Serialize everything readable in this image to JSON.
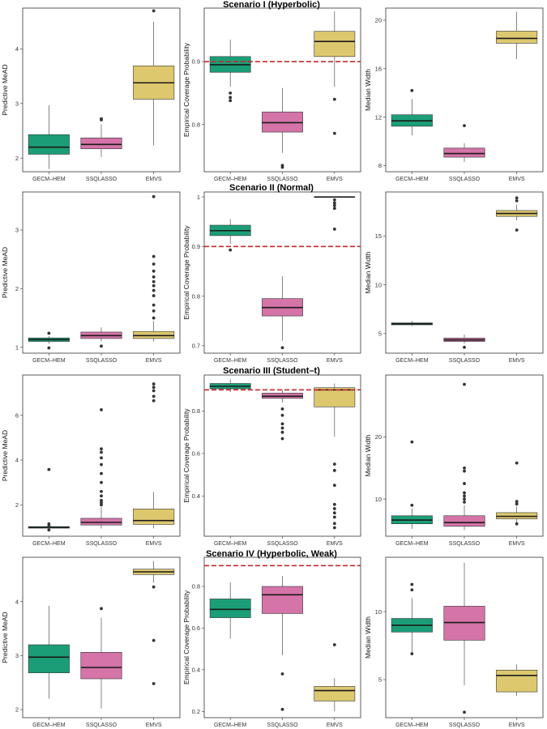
{
  "colors": {
    "GECM-HEM": "#1b9e77",
    "SSQLASSO": "#d474a8",
    "EMVS": "#ddc86e",
    "reference": "#c8282d"
  },
  "chart_data": [
    {
      "type": "box",
      "scenario": "Scenario I (Hyperbolic)",
      "ylabel": "Predictive MeAD",
      "ylim": [
        1.75,
        4.75
      ],
      "yticks": [
        2,
        3,
        4
      ],
      "categories": [
        "GECM–HEM",
        "SSQLASSO",
        "EMVS"
      ],
      "boxes": [
        {
          "whislo": 1.8,
          "q1": 2.07,
          "med": 2.2,
          "q3": 2.43,
          "whishi": 2.97,
          "outliers": []
        },
        {
          "whislo": 2.02,
          "q1": 2.17,
          "med": 2.25,
          "q3": 2.37,
          "whishi": 2.62,
          "outliers": [
            2.7,
            2.72
          ]
        },
        {
          "whislo": 2.23,
          "q1": 3.08,
          "med": 3.38,
          "q3": 3.69,
          "whishi": 4.5,
          "outliers": [
            4.7
          ]
        }
      ]
    },
    {
      "type": "box",
      "scenario": "Scenario I (Hyperbolic)",
      "ylabel": "Empirical Coverage Probability",
      "ylim": [
        0.725,
        0.985
      ],
      "yticks": [
        0.8,
        0.9
      ],
      "refline": 0.9,
      "categories": [
        "GECM–HEM",
        "SSQLASSO",
        "EMVS"
      ],
      "boxes": [
        {
          "whislo": 0.86,
          "q1": 0.883,
          "med": 0.895,
          "q3": 0.908,
          "whishi": 0.935,
          "outliers": [
            0.85,
            0.843,
            0.838
          ]
        },
        {
          "whislo": 0.755,
          "q1": 0.788,
          "med": 0.803,
          "q3": 0.82,
          "whishi": 0.858,
          "outliers": [
            0.735,
            0.732
          ]
        },
        {
          "whislo": 0.86,
          "q1": 0.908,
          "med": 0.932,
          "q3": 0.948,
          "whishi": 0.98,
          "outliers": [
            0.84,
            0.786
          ]
        }
      ]
    },
    {
      "type": "box",
      "scenario": "Scenario I (Hyperbolic)",
      "ylabel": "Median Width",
      "ylim": [
        7.5,
        21
      ],
      "yticks": [
        8,
        12,
        16,
        20
      ],
      "categories": [
        "GECM–HEM",
        "SSQLASSO",
        "EMVS"
      ],
      "boxes": [
        {
          "whislo": 10.5,
          "q1": 11.25,
          "med": 11.7,
          "q3": 12.2,
          "whishi": 13.5,
          "outliers": [
            14.2
          ]
        },
        {
          "whislo": 8.3,
          "q1": 8.7,
          "med": 9.0,
          "q3": 9.45,
          "whishi": 9.85,
          "outliers": [
            11.3
          ]
        },
        {
          "whislo": 16.8,
          "q1": 18.1,
          "med": 18.5,
          "q3": 19.1,
          "whishi": 20.7,
          "outliers": []
        }
      ]
    },
    {
      "type": "box",
      "scenario": "Scenario II (Normal)",
      "ylabel": "Predictive MeAD",
      "ylim": [
        0.9,
        3.65
      ],
      "yticks": [
        1,
        2,
        3
      ],
      "categories": [
        "GECM–HEM",
        "SSQLASSO",
        "EMVS"
      ],
      "boxes": [
        {
          "whislo": 1.06,
          "q1": 1.1,
          "med": 1.13,
          "q3": 1.16,
          "whishi": 1.19,
          "outliers": [
            1.24,
            0.99
          ]
        },
        {
          "whislo": 1.1,
          "q1": 1.15,
          "med": 1.2,
          "q3": 1.26,
          "whishi": 1.34,
          "outliers": [
            1.02
          ]
        },
        {
          "whislo": 1.1,
          "q1": 1.15,
          "med": 1.2,
          "q3": 1.27,
          "whishi": 1.45,
          "outliers": [
            1.5,
            1.62,
            1.72,
            1.88,
            1.97,
            2.05,
            2.12,
            2.2,
            2.3,
            2.42,
            2.55,
            3.57
          ]
        }
      ]
    },
    {
      "type": "box",
      "scenario": "Scenario II (Normal)",
      "ylabel": "Empirical Coverage Probability",
      "ylim": [
        0.685,
        1.01
      ],
      "yticks": [
        0.7,
        0.8,
        0.9,
        1.0
      ],
      "refline": 0.9,
      "categories": [
        "GECM–HEM",
        "SSQLASSO",
        "EMVS"
      ],
      "boxes": [
        {
          "whislo": 0.905,
          "q1": 0.922,
          "med": 0.932,
          "q3": 0.943,
          "whishi": 0.955,
          "outliers": [
            0.893
          ]
        },
        {
          "whislo": 0.71,
          "q1": 0.76,
          "med": 0.777,
          "q3": 0.795,
          "whishi": 0.84,
          "outliers": [
            0.696
          ]
        },
        {
          "whislo": 1.0,
          "q1": 1.0,
          "med": 1.0,
          "q3": 1.0,
          "whishi": 1.0,
          "outliers": [
            0.994,
            0.988,
            0.983,
            0.977,
            0.935
          ]
        }
      ]
    },
    {
      "type": "box",
      "scenario": "Scenario II (Normal)",
      "ylabel": "Median Width",
      "ylim": [
        3,
        19.5
      ],
      "yticks": [
        5,
        10,
        15
      ],
      "categories": [
        "GECM–HEM",
        "SSQLASSO",
        "EMVS"
      ],
      "boxes": [
        {
          "whislo": 5.8,
          "q1": 5.9,
          "med": 6.0,
          "q3": 6.1,
          "whishi": 6.3,
          "outliers": []
        },
        {
          "whislo": 4.0,
          "q1": 4.2,
          "med": 4.35,
          "q3": 4.55,
          "whishi": 4.9,
          "outliers": [
            3.6
          ]
        },
        {
          "whislo": 16.6,
          "q1": 17.0,
          "med": 17.3,
          "q3": 17.6,
          "whishi": 18.2,
          "outliers": [
            18.6,
            18.9,
            15.6
          ]
        }
      ]
    },
    {
      "type": "box",
      "scenario": "Scenario III (Student–t)",
      "ylabel": "Predictive MeAD",
      "ylim": [
        0.6,
        7.8
      ],
      "yticks": [
        2,
        4,
        6
      ],
      "categories": [
        "GECM–HEM",
        "SSQLASSO",
        "EMVS"
      ],
      "boxes": [
        {
          "whislo": 0.9,
          "q1": 0.96,
          "med": 1.0,
          "q3": 1.03,
          "whishi": 1.07,
          "outliers": [
            1.15,
            1.05,
            0.88,
            3.58
          ]
        },
        {
          "whislo": 0.95,
          "q1": 1.1,
          "med": 1.22,
          "q3": 1.4,
          "whishi": 1.9,
          "outliers": [
            2.0,
            2.1,
            2.2,
            2.4,
            2.6,
            3.0,
            3.4,
            3.8,
            4.1,
            4.35,
            4.5,
            6.25
          ]
        },
        {
          "whislo": 0.95,
          "q1": 1.13,
          "med": 1.3,
          "q3": 1.82,
          "whishi": 2.58,
          "outliers": [
            6.65,
            6.85,
            7.1,
            7.25,
            7.4
          ]
        }
      ]
    },
    {
      "type": "box",
      "scenario": "Scenario III (Student–t)",
      "ylabel": "Empirical Coverage Probability",
      "ylim": [
        0.21,
        0.97
      ],
      "yticks": [
        0.4,
        0.6,
        0.8
      ],
      "refline": 0.9,
      "categories": [
        "GECM–HEM",
        "SSQLASSO",
        "EMVS"
      ],
      "boxes": [
        {
          "whislo": 0.89,
          "q1": 0.905,
          "med": 0.917,
          "q3": 0.93,
          "whishi": 0.95,
          "outliers": []
        },
        {
          "whislo": 0.84,
          "q1": 0.86,
          "med": 0.87,
          "q3": 0.885,
          "whishi": 0.9,
          "outliers": [
            0.81,
            0.78,
            0.74,
            0.72,
            0.7,
            0.67
          ]
        },
        {
          "whislo": 0.68,
          "q1": 0.82,
          "med": 0.9,
          "q3": 0.91,
          "whishi": 0.93,
          "outliers": [
            0.55,
            0.52,
            0.45,
            0.36,
            0.34,
            0.32,
            0.3,
            0.27,
            0.25
          ]
        }
      ]
    },
    {
      "type": "box",
      "scenario": "Scenario III (Student–t)",
      "ylabel": "Median Width",
      "ylim": [
        4,
        30
      ],
      "yticks": [
        10,
        20
      ],
      "categories": [
        "GECM–HEM",
        "SSQLASSO",
        "EMVS"
      ],
      "boxes": [
        {
          "whislo": 5.2,
          "q1": 6.0,
          "med": 6.6,
          "q3": 7.3,
          "whishi": 8.5,
          "outliers": [
            9.0,
            19.2
          ]
        },
        {
          "whislo": 5.0,
          "q1": 5.6,
          "med": 6.2,
          "q3": 7.3,
          "whishi": 9.0,
          "outliers": [
            9.5,
            10.0,
            10.5,
            11.0,
            12.5,
            14.5,
            15.0,
            28.5
          ]
        },
        {
          "whislo": 5.8,
          "q1": 6.8,
          "med": 7.2,
          "q3": 7.8,
          "whishi": 8.8,
          "outliers": [
            9.2,
            9.6,
            6.0,
            15.8
          ]
        }
      ]
    },
    {
      "type": "box",
      "scenario": "Scenario IV (Hyperbolic, Weak)",
      "ylabel": "Predictive MeAD",
      "ylim": [
        1.85,
        4.82
      ],
      "yticks": [
        2,
        3,
        4
      ],
      "categories": [
        "GECM–HEM",
        "SSQLASSO",
        "EMVS"
      ],
      "boxes": [
        {
          "whislo": 2.2,
          "q1": 2.68,
          "med": 2.97,
          "q3": 3.2,
          "whishi": 3.92,
          "outliers": []
        },
        {
          "whislo": 2.02,
          "q1": 2.57,
          "med": 2.78,
          "q3": 3.06,
          "whishi": 3.7,
          "outliers": [
            3.87
          ]
        },
        {
          "whislo": 4.35,
          "q1": 4.5,
          "med": 4.55,
          "q3": 4.6,
          "whishi": 4.75,
          "outliers": [
            4.27,
            3.28,
            2.48
          ]
        }
      ]
    },
    {
      "type": "box",
      "scenario": "Scenario IV (Hyperbolic, Weak)",
      "ylabel": "Empirical Coverage Probability",
      "ylim": [
        0.17,
        0.94
      ],
      "yticks": [
        0.2,
        0.4,
        0.6,
        0.8
      ],
      "refline": 0.9,
      "categories": [
        "GECM–HEM",
        "SSQLASSO",
        "EMVS"
      ],
      "boxes": [
        {
          "whislo": 0.55,
          "q1": 0.65,
          "med": 0.69,
          "q3": 0.74,
          "whishi": 0.82,
          "outliers": []
        },
        {
          "whislo": 0.47,
          "q1": 0.67,
          "med": 0.76,
          "q3": 0.8,
          "whishi": 0.85,
          "outliers": [
            0.38,
            0.21
          ]
        },
        {
          "whislo": 0.2,
          "q1": 0.25,
          "med": 0.3,
          "q3": 0.32,
          "whishi": 0.36,
          "outliers": [
            0.52
          ]
        }
      ]
    },
    {
      "type": "box",
      "scenario": "Scenario IV (Hyperbolic, Weak)",
      "ylabel": "Median Width",
      "ylim": [
        2.2,
        14
      ],
      "yticks": [
        5,
        10
      ],
      "categories": [
        "GECM–HEM",
        "SSQLASSO",
        "EMVS"
      ],
      "boxes": [
        {
          "whislo": 7.0,
          "q1": 8.5,
          "med": 9.0,
          "q3": 9.5,
          "whishi": 11.0,
          "outliers": [
            11.6,
            12.0,
            6.9
          ]
        },
        {
          "whislo": 4.6,
          "q1": 7.9,
          "med": 9.2,
          "q3": 10.4,
          "whishi": 13.6,
          "outliers": [
            2.6
          ]
        },
        {
          "whislo": 3.8,
          "q1": 4.1,
          "med": 5.3,
          "q3": 5.7,
          "whishi": 6.1,
          "outliers": []
        }
      ]
    }
  ]
}
